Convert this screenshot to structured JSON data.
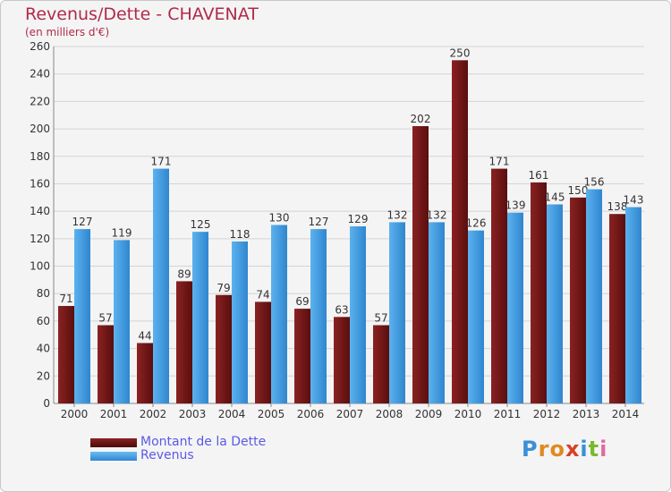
{
  "chart_data": {
    "type": "bar",
    "title": "Revenus/Dette - CHAVENAT",
    "subtitle": "(en milliers d'€)",
    "categories": [
      "2000",
      "2001",
      "2002",
      "2003",
      "2004",
      "2005",
      "2006",
      "2007",
      "2008",
      "2009",
      "2010",
      "2011",
      "2012",
      "2013",
      "2014"
    ],
    "series": [
      {
        "name": "Montant de la Dette",
        "color": "#7a1c1c",
        "values": [
          71,
          57,
          44,
          89,
          79,
          74,
          69,
          63,
          57,
          202,
          250,
          171,
          161,
          150,
          138
        ]
      },
      {
        "name": "Revenus",
        "color": "#4aa3e8",
        "values": [
          127,
          119,
          171,
          125,
          118,
          130,
          127,
          129,
          132,
          132,
          126,
          139,
          145,
          156,
          143
        ]
      }
    ],
    "ylim": [
      0,
      260
    ],
    "yticks": [
      0,
      20,
      40,
      60,
      80,
      100,
      120,
      140,
      160,
      180,
      200,
      220,
      240,
      260
    ],
    "grid": true,
    "legend_position": "bottom-left"
  },
  "branding": {
    "logo_letters": [
      "P",
      "r",
      "o",
      "x",
      "i",
      "t",
      "i"
    ],
    "logo_colors": [
      "#3a8fd8",
      "#e08a1e",
      "#e08a1e",
      "#d8402a",
      "#3a8fd8",
      "#7ab82e",
      "#e06aa0"
    ]
  }
}
